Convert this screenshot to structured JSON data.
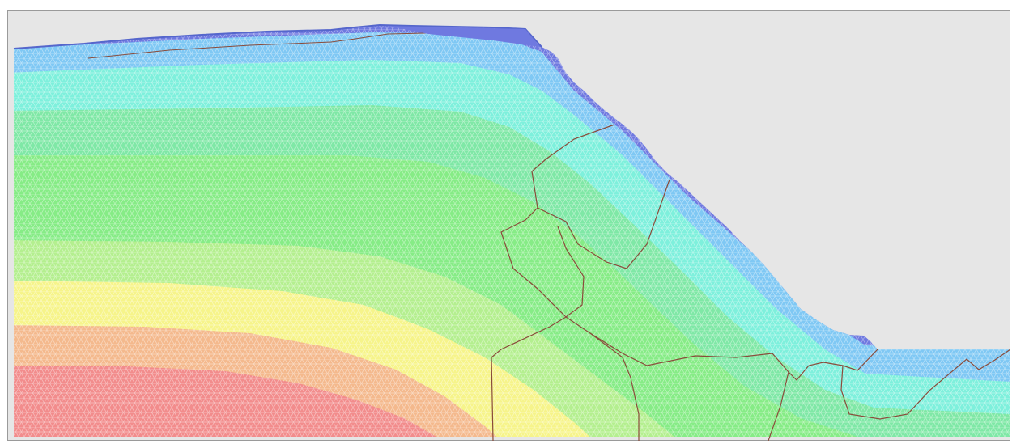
{
  "view": {
    "background_color": "#e6e6e6",
    "frame_color": "#9a9a9a",
    "boundary_color": "#8a4b3a",
    "surface_color": "#5566cc"
  },
  "contour_bands": [
    {
      "name": "band-1",
      "color": "#6f79e0"
    },
    {
      "name": "band-2",
      "color": "#7fc8f4"
    },
    {
      "name": "band-3",
      "color": "#7ef0dc"
    },
    {
      "name": "band-4",
      "color": "#7fe8a6"
    },
    {
      "name": "band-5",
      "color": "#86ec86"
    },
    {
      "name": "band-6",
      "color": "#b4ef8f"
    },
    {
      "name": "band-7",
      "color": "#f6f48a"
    },
    {
      "name": "band-8",
      "color": "#f4b98d"
    },
    {
      "name": "band-9",
      "color": "#f28c8c"
    }
  ],
  "mesh": {
    "pattern": "triangular",
    "color": "#ffffff"
  }
}
